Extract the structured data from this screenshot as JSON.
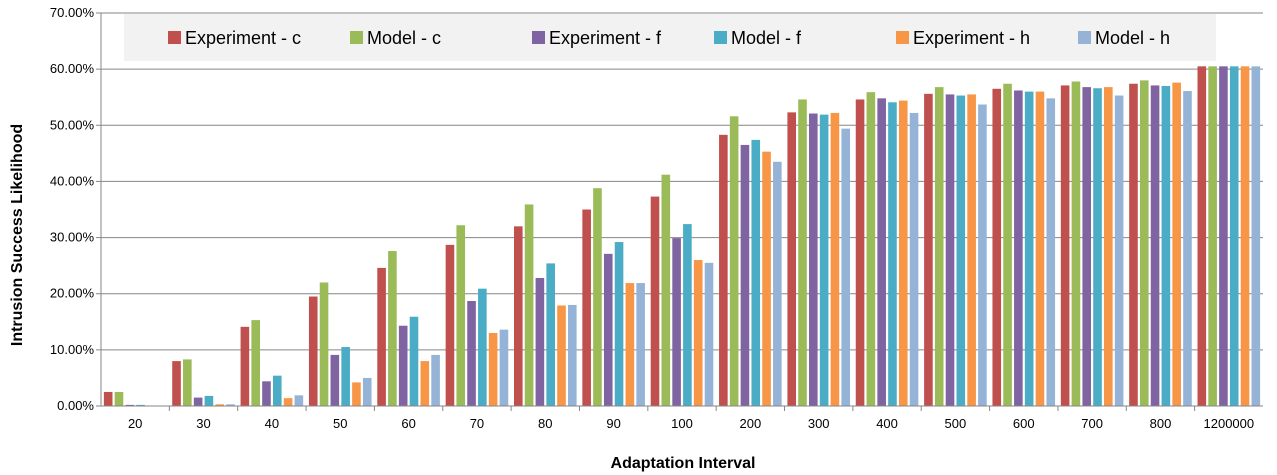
{
  "chart_data": {
    "type": "bar",
    "title": "",
    "xlabel": "Adaptation Interval",
    "ylabel": "Intrusion Success Likelihood",
    "ylim": [
      0,
      70
    ],
    "y_ticks": [
      "0.00%",
      "10.00%",
      "20.00%",
      "30.00%",
      "40.00%",
      "50.00%",
      "60.00%",
      "70.00%"
    ],
    "grid": true,
    "legend_position": "top",
    "categories": [
      "20",
      "30",
      "40",
      "50",
      "60",
      "70",
      "80",
      "90",
      "100",
      "200",
      "300",
      "400",
      "500",
      "600",
      "700",
      "800",
      "1200000"
    ],
    "series": [
      {
        "name": "Experiment - c",
        "color": "#C0504D",
        "values": [
          2.5,
          8.0,
          14.1,
          19.5,
          24.6,
          28.7,
          32.0,
          35.0,
          37.3,
          48.3,
          52.3,
          54.6,
          55.6,
          56.5,
          57.1,
          57.4,
          60.5
        ]
      },
      {
        "name": "Model - c",
        "color": "#9BBB59",
        "values": [
          2.5,
          8.3,
          15.3,
          22.0,
          27.6,
          32.2,
          35.9,
          38.8,
          41.2,
          51.6,
          54.6,
          55.9,
          56.8,
          57.4,
          57.8,
          58.0,
          60.5
        ]
      },
      {
        "name": "Experiment - f",
        "color": "#8064A2",
        "values": [
          0.2,
          1.5,
          4.4,
          9.1,
          14.3,
          18.7,
          22.8,
          27.1,
          29.9,
          46.5,
          52.1,
          54.8,
          55.5,
          56.2,
          56.8,
          57.1,
          60.5
        ]
      },
      {
        "name": "Model - f",
        "color": "#4BACC6",
        "values": [
          0.2,
          1.8,
          5.4,
          10.5,
          15.9,
          20.9,
          25.4,
          29.2,
          32.4,
          47.4,
          51.9,
          54.1,
          55.3,
          56.0,
          56.6,
          57.0,
          60.5
        ]
      },
      {
        "name": "Experiment - h",
        "color": "#F79646",
        "values": [
          0.0,
          0.3,
          1.4,
          4.2,
          8.0,
          13.0,
          17.9,
          21.9,
          26.0,
          45.3,
          52.2,
          54.4,
          55.5,
          56.0,
          56.8,
          57.6,
          60.5
        ]
      },
      {
        "name": "Model - h",
        "color": "#95B3D7",
        "values": [
          0.0,
          0.3,
          1.9,
          5.0,
          9.1,
          13.6,
          18.0,
          21.9,
          25.5,
          43.5,
          49.4,
          52.2,
          53.7,
          54.8,
          55.3,
          56.1,
          60.5
        ]
      }
    ]
  }
}
